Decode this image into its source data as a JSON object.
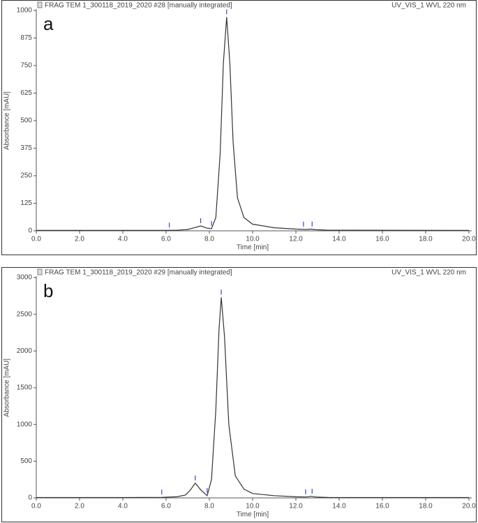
{
  "chart_data": [
    {
      "type": "line",
      "panel_label": "a",
      "title": "FRAG TEM 1_300118_2019_2020 #28 [manually integrated]",
      "subtitle": "UV_VIS_1 WVL 220 nm",
      "x_label": "Time [min]",
      "y_label": "Absorbance [mAU]",
      "x": [
        0,
        2,
        4,
        6,
        6.5,
        7,
        7.3,
        7.6,
        7.9,
        8.1,
        8.3,
        8.5,
        8.65,
        8.8,
        8.95,
        9.1,
        9.3,
        9.6,
        10,
        11,
        12,
        12.5,
        12.7,
        12.9,
        13.5,
        20
      ],
      "values": [
        2,
        2,
        2,
        2,
        3,
        6,
        14,
        22,
        12,
        10,
        60,
        350,
        760,
        970,
        760,
        400,
        150,
        60,
        30,
        14,
        8,
        6,
        8,
        5,
        3,
        2
      ],
      "color": "#333333",
      "markers": [
        6.15,
        7.6,
        8.1,
        8.8,
        12.35,
        12.75
      ],
      "marker_color": "#3344dd",
      "xlim": [
        0,
        20
      ],
      "ylim": [
        0,
        1000
      ],
      "xticks": [
        {
          "value": 0,
          "label": "0.0"
        },
        {
          "value": 2,
          "label": "2.0"
        },
        {
          "value": 4,
          "label": "4.0"
        },
        {
          "value": 6,
          "label": "6.0"
        },
        {
          "value": 8,
          "label": "8.0"
        },
        {
          "value": 10,
          "label": "10.0"
        },
        {
          "value": 12,
          "label": "12.0"
        },
        {
          "value": 14,
          "label": "14.0"
        },
        {
          "value": 16,
          "label": "16.0"
        },
        {
          "value": 18,
          "label": "18.0"
        },
        {
          "value": 20,
          "label": "20.0"
        }
      ],
      "yticks": [
        0,
        125,
        250,
        375,
        500,
        625,
        750,
        875,
        1000
      ]
    },
    {
      "type": "line",
      "panel_label": "b",
      "title": "FRAG TEM 1_300118_2019_2020 #29 [manually integrated]",
      "subtitle": "UV_VIS_1 WVL 220 nm",
      "x_label": "Time [min]",
      "y_label": "Absorbance [mAU]",
      "x": [
        0,
        2,
        4,
        5.8,
        6.5,
        6.9,
        7.1,
        7.35,
        7.6,
        7.9,
        8.1,
        8.3,
        8.45,
        8.55,
        8.7,
        8.9,
        9.2,
        9.6,
        10,
        11,
        12,
        12.5,
        12.7,
        12.9,
        13.5,
        20
      ],
      "values": [
        5,
        5,
        5,
        8,
        15,
        40,
        100,
        200,
        110,
        30,
        250,
        1200,
        2300,
        2730,
        2200,
        1000,
        300,
        120,
        60,
        30,
        15,
        12,
        22,
        12,
        6,
        5
      ],
      "color": "#333333",
      "markers": [
        5.8,
        7.35,
        7.9,
        8.55,
        12.45,
        12.75
      ],
      "marker_color": "#3344dd",
      "xlim": [
        0,
        20
      ],
      "ylim": [
        0,
        3000
      ],
      "xticks": [
        {
          "value": 0,
          "label": "0.0"
        },
        {
          "value": 2,
          "label": "2.0"
        },
        {
          "value": 4,
          "label": "4.0"
        },
        {
          "value": 6,
          "label": "6.0"
        },
        {
          "value": 8,
          "label": "8.0"
        },
        {
          "value": 10,
          "label": "10.0"
        },
        {
          "value": 12,
          "label": "12.0"
        },
        {
          "value": 14,
          "label": "14.0"
        },
        {
          "value": 16,
          "label": "16.0"
        },
        {
          "value": 18,
          "label": "18.0"
        },
        {
          "value": 20,
          "label": "20.0"
        }
      ],
      "yticks": [
        0,
        500,
        1000,
        1500,
        2000,
        2500,
        3000
      ]
    }
  ]
}
